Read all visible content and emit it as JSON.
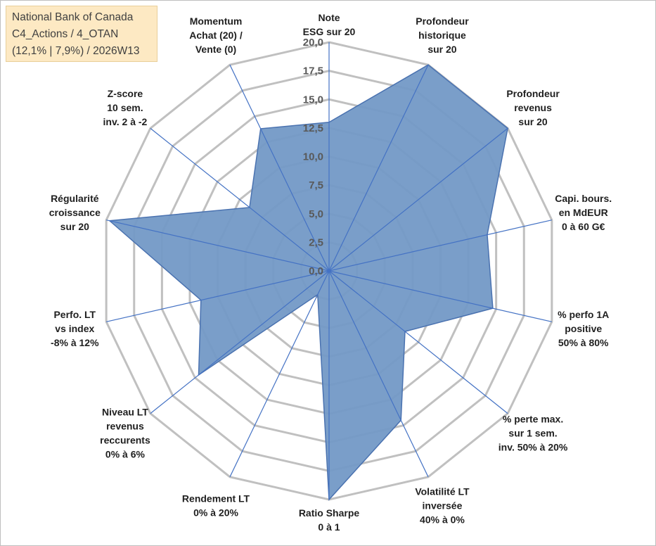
{
  "header": {
    "line1": "National Bank of Canada",
    "line2": "C4_Actions / 4_OTAN",
    "line3": "(12,1% | 7,9%) / 2026W13"
  },
  "colors": {
    "fill": "#7399c6",
    "stroke": "#4a72b0",
    "grid": "#c0c0c0",
    "spoke": "#4472c4"
  },
  "chart_data": {
    "type": "radar",
    "title": "National Bank of Canada",
    "rmax": 20,
    "ticks": [
      "0,0",
      "2,5",
      "5,0",
      "7,5",
      "10,0",
      "12,5",
      "15,0",
      "17,5",
      "20,0"
    ],
    "tick_values": [
      0,
      2.5,
      5,
      7.5,
      10,
      12.5,
      15,
      17.5,
      20
    ],
    "categories": [
      "Note ESG sur 20",
      "Profondeur historique sur 20",
      "Profondeur revenus sur 20",
      "Capi. bours. en MdEUR 0 à 60 G€",
      "% perfo 1A positive 50% à 80%",
      "% perte max. sur 1 sem. inv. 50% à 20%",
      "Volatilité LT inversée 40% à 0%",
      "Ratio Sharpe 0 à 1",
      "Rendement LT 0% à 20%",
      "Niveau LT revenus reccurents 0% à 6%",
      "Perfo. LT vs index -8% à 12%",
      "Régularité croissance sur 20",
      "Z-score 10 sem. inv. 2 à -2",
      "Momentum Achat (20) / Vente (0)"
    ],
    "category_lines": [
      [
        "Note",
        "ESG sur 20"
      ],
      [
        "Profondeur",
        "historique",
        "sur 20"
      ],
      [
        "Profondeur",
        "revenus",
        "sur 20"
      ],
      [
        "Capi. bours.",
        "en MdEUR",
        "0 à 60 G€"
      ],
      [
        "% perfo 1A",
        "positive",
        "50% à 80%"
      ],
      [
        "% perte max.",
        "sur 1 sem.",
        "inv. 50% à 20%"
      ],
      [
        "Volatilité LT",
        "inversée",
        "40% à 0%"
      ],
      [
        "Ratio Sharpe",
        "0 à 1"
      ],
      [
        "Rendement LT",
        "0% à 20%"
      ],
      [
        "Niveau LT",
        "revenus",
        "reccurents",
        "0% à 6%"
      ],
      [
        "Perfo. LT",
        "vs index",
        "-8% à 12%"
      ],
      [
        "Régularité",
        "croissance",
        "sur 20"
      ],
      [
        "Z-score",
        "10 sem.",
        "inv. 2 à -2"
      ],
      [
        "Momentum",
        "Achat (20) /",
        "Vente (0)"
      ]
    ],
    "series": [
      {
        "name": "National Bank of Canada",
        "values": [
          13,
          20,
          20,
          14.2,
          14.7,
          8.5,
          14.5,
          20,
          2.3,
          14.6,
          11.5,
          19.7,
          8.9,
          13.8
        ]
      }
    ]
  }
}
